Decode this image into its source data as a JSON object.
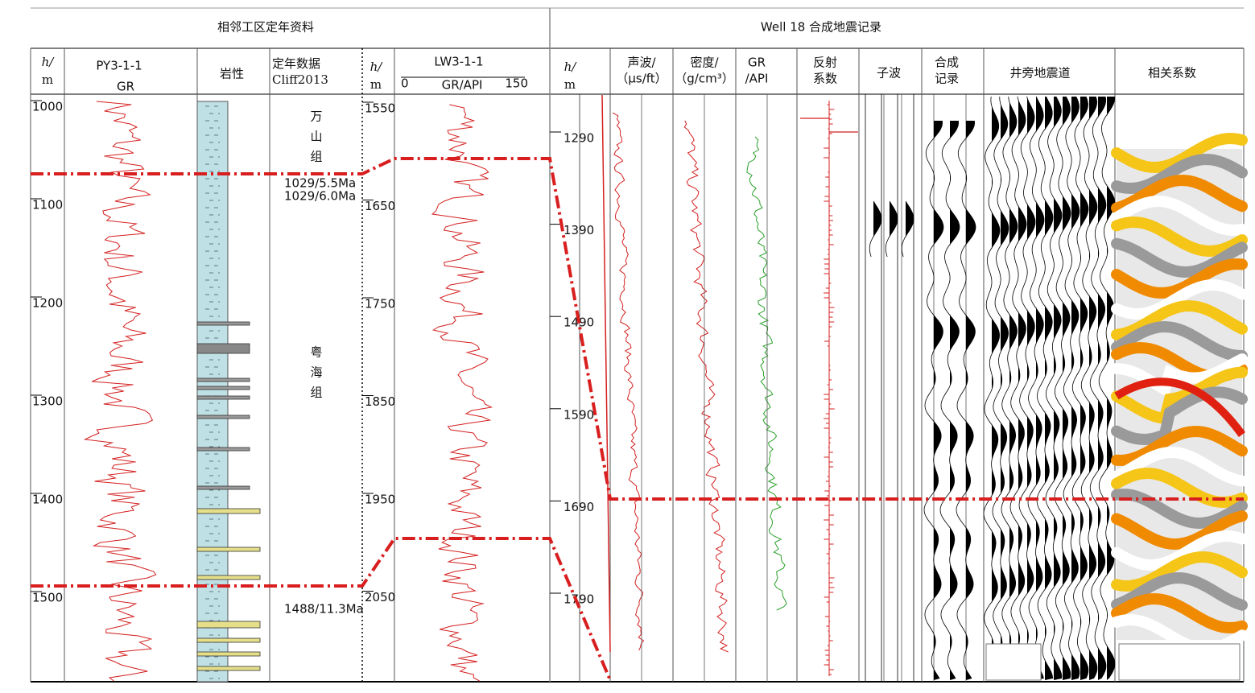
{
  "header": {
    "left": "相邻工区定年资料",
    "right": "Well 18 合成地震记录"
  },
  "left_panel": {
    "depth_header": [
      "h/",
      "m"
    ],
    "py_well": "PY3-1-1",
    "py_curve": "GR",
    "lithology": "岩性",
    "dating_header": [
      "定年数据",
      "Cliff2013"
    ],
    "lw_depth_header": [
      "h/",
      "m"
    ],
    "lw_well": "LW3-1-1",
    "lw_scale": {
      "min": "0",
      "label": "GR/API",
      "max": "150"
    },
    "py_depths": [
      1000,
      1100,
      1200,
      1300,
      1400,
      1500
    ],
    "lw_depths": [
      1550,
      1650,
      1750,
      1850,
      1950,
      2050
    ],
    "formations": [
      [
        "万",
        "山",
        "组"
      ],
      [
        "粤",
        "海",
        "组"
      ]
    ],
    "dates": [
      "1029/5.5Ma",
      "1029/6.0Ma",
      "1488/11.3Ma"
    ]
  },
  "right_panel": {
    "depth_header": [
      "h/",
      "m"
    ],
    "depths": [
      1290,
      1390,
      1490,
      1590,
      1690,
      1790
    ],
    "columns": [
      [
        "声波/",
        "（μs/ft）"
      ],
      [
        "密度/",
        "（g/cm³）"
      ],
      [
        "GR",
        "/API"
      ],
      [
        "反射",
        "系数"
      ],
      [
        "子波"
      ],
      [
        "合成",
        "记录"
      ],
      [
        "井旁地震道"
      ],
      [
        "相关系数"
      ]
    ]
  }
}
